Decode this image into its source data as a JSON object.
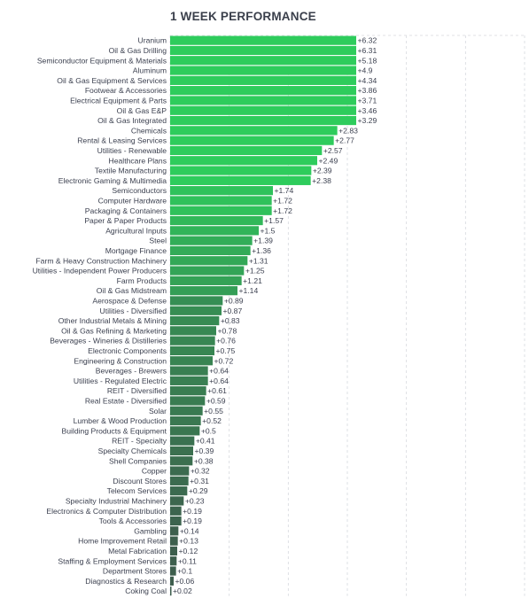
{
  "chart_data": {
    "type": "bar",
    "orientation": "horizontal",
    "title": "1 WEEK PERFORMANCE",
    "xlim": [
      0,
      6.0
    ],
    "grid": true,
    "colors": {
      "top": "#2ecc5c",
      "bottom": "#3d5e4d"
    },
    "categories": [
      "Uranium",
      "Oil & Gas Drilling",
      "Semiconductor Equipment & Materials",
      "Aluminum",
      "Oil & Gas Equipment & Services",
      "Footwear & Accessories",
      "Electrical Equipment & Parts",
      "Oil & Gas E&P",
      "Oil & Gas Integrated",
      "Chemicals",
      "Rental & Leasing Services",
      "Utilities - Renewable",
      "Healthcare Plans",
      "Textile Manufacturing",
      "Electronic Gaming & Multimedia",
      "Semiconductors",
      "Computer Hardware",
      "Packaging & Containers",
      "Paper & Paper Products",
      "Agricultural Inputs",
      "Steel",
      "Mortgage Finance",
      "Farm & Heavy Construction Machinery",
      "Utilities - Independent Power Producers",
      "Farm Products",
      "Oil & Gas Midstream",
      "Aerospace & Defense",
      "Utilities - Diversified",
      "Other Industrial Metals & Mining",
      "Oil & Gas Refining & Marketing",
      "Beverages - Wineries & Distilleries",
      "Electronic Components",
      "Engineering & Construction",
      "Beverages - Brewers",
      "Utilities - Regulated Electric",
      "REIT - Diversified",
      "Real Estate - Diversified",
      "Solar",
      "Lumber & Wood Production",
      "Building Products & Equipment",
      "REIT - Specialty",
      "Specialty Chemicals",
      "Shell Companies",
      "Copper",
      "Discount Stores",
      "Telecom Services",
      "Specialty Industrial Machinery",
      "Electronics & Computer Distribution",
      "Tools & Accessories",
      "Gambling",
      "Home Improvement Retail",
      "Metal Fabrication",
      "Staffing & Employment Services",
      "Department Stores",
      "Diagnostics & Research",
      "Coking Coal"
    ],
    "values": [
      6.32,
      6.31,
      5.18,
      4.9,
      4.34,
      3.86,
      3.71,
      3.46,
      3.29,
      2.83,
      2.77,
      2.57,
      2.49,
      2.39,
      2.38,
      1.74,
      1.72,
      1.72,
      1.57,
      1.5,
      1.39,
      1.36,
      1.31,
      1.25,
      1.21,
      1.14,
      0.89,
      0.87,
      0.83,
      0.78,
      0.76,
      0.75,
      0.72,
      0.64,
      0.64,
      0.61,
      0.59,
      0.55,
      0.52,
      0.5,
      0.41,
      0.39,
      0.38,
      0.32,
      0.31,
      0.29,
      0.23,
      0.19,
      0.19,
      0.14,
      0.13,
      0.12,
      0.11,
      0.1,
      0.06,
      0.02
    ],
    "value_labels": [
      "+6.32",
      "+6.31",
      "+5.18",
      "+4.9",
      "+4.34",
      "+3.86",
      "+3.71",
      "+3.46",
      "+3.29",
      "+2.83",
      "+2.77",
      "+2.57",
      "+2.49",
      "+2.39",
      "+2.38",
      "+1.74",
      "+1.72",
      "+1.72",
      "+1.57",
      "+1.5",
      "+1.39",
      "+1.36",
      "+1.31",
      "+1.25",
      "+1.21",
      "+1.14",
      "+0.89",
      "+0.87",
      "+0.83",
      "+0.78",
      "+0.76",
      "+0.75",
      "+0.72",
      "+0.64",
      "+0.64",
      "+0.61",
      "+0.59",
      "+0.55",
      "+0.52",
      "+0.5",
      "+0.41",
      "+0.39",
      "+0.38",
      "+0.32",
      "+0.31",
      "+0.29",
      "+0.23",
      "+0.19",
      "+0.19",
      "+0.14",
      "+0.13",
      "+0.12",
      "+0.11",
      "+0.1",
      "+0.06",
      "+0.02"
    ]
  }
}
